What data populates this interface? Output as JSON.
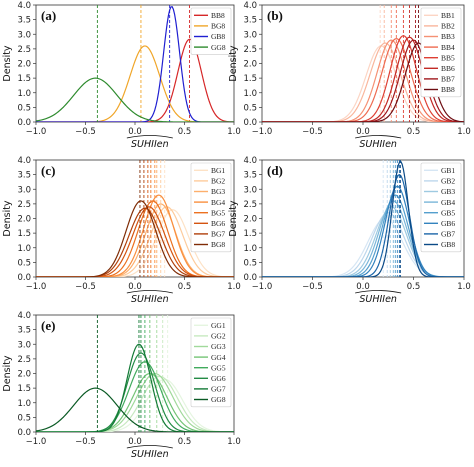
{
  "figure": {
    "xlabel": "SUHIIen",
    "ylabel": "Density"
  },
  "chart_data": [
    {
      "type": "line",
      "panel_label": "(a)",
      "xlim": [
        -1.0,
        1.0
      ],
      "ylim": [
        0.0,
        4.0
      ],
      "xticks": [
        "−1.0",
        "−0.5",
        "0.0",
        "0.5",
        "1.0"
      ],
      "yticks": [
        "0.0",
        "0.5",
        "1.0",
        "1.5",
        "2.0",
        "2.5",
        "3.0",
        "3.5",
        "4.0"
      ],
      "xlabel": "SUHIIen",
      "ylabel": "Density",
      "legend_position": "top-right",
      "series": [
        {
          "name": "BB8",
          "color": "#d62728",
          "mean": 0.57,
          "sd": 0.12,
          "amp": 2.8,
          "skew": -0.25,
          "vline": 0.55
        },
        {
          "name": "BG8",
          "color": "#f0a62a",
          "mean": 0.1,
          "sd": 0.15,
          "amp": 2.6,
          "skew": 0.0,
          "vline": 0.06
        },
        {
          "name": "GB8",
          "color": "#1f1fd1",
          "mean": 0.37,
          "sd": 0.08,
          "amp": 3.95,
          "skew": 0.0,
          "vline": 0.35
        },
        {
          "name": "GG8",
          "color": "#2e8b2e",
          "mean": -0.4,
          "sd": 0.22,
          "amp": 1.5,
          "skew": 0.0,
          "vline": -0.38
        }
      ]
    },
    {
      "type": "line",
      "panel_label": "(b)",
      "xlim": [
        -1.0,
        1.0
      ],
      "ylim": [
        0.0,
        4.0
      ],
      "xticks": [
        "−1.0",
        "−0.5",
        "0.0",
        "0.5",
        "1.0"
      ],
      "yticks": [
        "0.0",
        "0.5",
        "1.0",
        "1.5",
        "2.0",
        "2.5",
        "3.0",
        "3.5",
        "4.0"
      ],
      "xlabel": "SUHIIen",
      "ylabel": "Density",
      "legend_position": "top-right",
      "series": [
        {
          "name": "BB1",
          "color": "#fcd5c4",
          "mean": 0.18,
          "sd": 0.15,
          "amp": 2.6,
          "skew": 0.0,
          "vline": 0.17
        },
        {
          "name": "BB2",
          "color": "#f9b69c",
          "mean": 0.22,
          "sd": 0.15,
          "amp": 2.7,
          "skew": 0.0,
          "vline": 0.21
        },
        {
          "name": "BB3",
          "color": "#f59174",
          "mean": 0.28,
          "sd": 0.14,
          "amp": 2.8,
          "skew": 0.0,
          "vline": 0.28
        },
        {
          "name": "BB4",
          "color": "#ee6a50",
          "mean": 0.33,
          "sd": 0.14,
          "amp": 2.85,
          "skew": 0.0,
          "vline": 0.33
        },
        {
          "name": "BB5",
          "color": "#de3f33",
          "mean": 0.4,
          "sd": 0.13,
          "amp": 2.95,
          "skew": 0.0,
          "vline": 0.4
        },
        {
          "name": "BB6",
          "color": "#c22a26",
          "mean": 0.46,
          "sd": 0.13,
          "amp": 2.9,
          "skew": 0.0,
          "vline": 0.46
        },
        {
          "name": "BB7",
          "color": "#a0171c",
          "mean": 0.5,
          "sd": 0.13,
          "amp": 2.8,
          "skew": 0.0,
          "vline": 0.52
        },
        {
          "name": "BB8",
          "color": "#6e0d12",
          "mean": 0.55,
          "sd": 0.13,
          "amp": 2.7,
          "skew": 0.0,
          "vline": 0.55
        }
      ]
    },
    {
      "type": "line",
      "panel_label": "(c)",
      "xlim": [
        -1.0,
        1.0
      ],
      "ylim": [
        0.0,
        4.0
      ],
      "xticks": [
        "−1.0",
        "−0.5",
        "0.0",
        "0.5",
        "1.0"
      ],
      "yticks": [
        "0.0",
        "0.5",
        "1.0",
        "1.5",
        "2.0",
        "2.5",
        "3.0",
        "3.5",
        "4.0"
      ],
      "xlabel": "SUHIIen",
      "ylabel": "Density",
      "legend_position": "top-right",
      "series": [
        {
          "name": "BG1",
          "color": "#fde2c6",
          "mean": 0.38,
          "sd": 0.16,
          "amp": 2.3,
          "skew": 0.0,
          "vline": 0.3
        },
        {
          "name": "BG2",
          "color": "#fdcb9c",
          "mean": 0.32,
          "sd": 0.16,
          "amp": 2.4,
          "skew": 0.0,
          "vline": 0.26
        },
        {
          "name": "BG3",
          "color": "#fdaf6c",
          "mean": 0.26,
          "sd": 0.15,
          "amp": 2.5,
          "skew": 0.0,
          "vline": 0.22
        },
        {
          "name": "BG4",
          "color": "#f98f3f",
          "mean": 0.24,
          "sd": 0.15,
          "amp": 2.8,
          "skew": 0.0,
          "vline": 0.2
        },
        {
          "name": "BG5",
          "color": "#ec7120",
          "mean": 0.18,
          "sd": 0.15,
          "amp": 2.6,
          "skew": 0.0,
          "vline": 0.16
        },
        {
          "name": "BG6",
          "color": "#d45410",
          "mean": 0.14,
          "sd": 0.16,
          "amp": 2.4,
          "skew": 0.0,
          "vline": 0.13
        },
        {
          "name": "BG7",
          "color": "#b0400b",
          "mean": 0.1,
          "sd": 0.16,
          "amp": 2.35,
          "skew": 0.0,
          "vline": 0.09
        },
        {
          "name": "BG8",
          "color": "#7f2c06",
          "mean": 0.06,
          "sd": 0.15,
          "amp": 2.6,
          "skew": 0.0,
          "vline": 0.05
        }
      ]
    },
    {
      "type": "line",
      "panel_label": "(d)",
      "xlim": [
        -1.0,
        1.0
      ],
      "ylim": [
        0.0,
        4.0
      ],
      "xticks": [
        "−1.0",
        "−0.5",
        "0.0",
        "0.5",
        "1.0"
      ],
      "yticks": [
        "0.0",
        "0.5",
        "1.0",
        "1.5",
        "2.0",
        "2.5",
        "3.0",
        "3.5",
        "4.0"
      ],
      "xlabel": "SUHIIen",
      "ylabel": "Density",
      "legend_position": "top-right",
      "series": [
        {
          "name": "GB1",
          "color": "#d6e6f4",
          "mean": 0.22,
          "sd": 0.17,
          "amp": 2.0,
          "skew": 0.0,
          "vline": 0.2
        },
        {
          "name": "GB2",
          "color": "#bdd7ec",
          "mean": 0.25,
          "sd": 0.16,
          "amp": 2.2,
          "skew": 0.0,
          "vline": 0.24
        },
        {
          "name": "GB3",
          "color": "#9ecae1",
          "mean": 0.28,
          "sd": 0.15,
          "amp": 2.4,
          "skew": 0.0,
          "vline": 0.27
        },
        {
          "name": "GB4",
          "color": "#7ab6d9",
          "mean": 0.3,
          "sd": 0.14,
          "amp": 2.6,
          "skew": 0.0,
          "vline": 0.3
        },
        {
          "name": "GB5",
          "color": "#549fcd",
          "mean": 0.32,
          "sd": 0.13,
          "amp": 2.8,
          "skew": 0.0,
          "vline": 0.32
        },
        {
          "name": "GB6",
          "color": "#3383be",
          "mean": 0.34,
          "sd": 0.12,
          "amp": 3.1,
          "skew": 0.0,
          "vline": 0.34
        },
        {
          "name": "GB7",
          "color": "#1c66a8",
          "mean": 0.36,
          "sd": 0.1,
          "amp": 3.5,
          "skew": 0.0,
          "vline": 0.36
        },
        {
          "name": "GB8",
          "color": "#0b4a86",
          "mean": 0.37,
          "sd": 0.08,
          "amp": 3.95,
          "skew": 0.0,
          "vline": 0.37
        }
      ]
    },
    {
      "type": "line",
      "panel_label": "(e)",
      "xlim": [
        -1.0,
        1.0
      ],
      "ylim": [
        0.0,
        4.0
      ],
      "xticks": [
        "−1.0",
        "−0.5",
        "0.0",
        "0.5",
        "1.0"
      ],
      "yticks": [
        "0.0",
        "0.5",
        "1.0",
        "1.5",
        "2.0",
        "2.5",
        "3.0",
        "3.5",
        "4.0"
      ],
      "xlabel": "SUHIIen",
      "ylabel": "Density",
      "legend_position": "top-right",
      "series": [
        {
          "name": "GG1",
          "color": "#e5f5e0",
          "mean": 0.3,
          "sd": 0.18,
          "amp": 1.8,
          "skew": 0.0,
          "vline": 0.33
        },
        {
          "name": "GG2",
          "color": "#c7e9c0",
          "mean": 0.25,
          "sd": 0.18,
          "amp": 1.9,
          "skew": 0.0,
          "vline": 0.28
        },
        {
          "name": "GG3",
          "color": "#a1d99b",
          "mean": 0.2,
          "sd": 0.18,
          "amp": 2.0,
          "skew": 0.0,
          "vline": 0.22
        },
        {
          "name": "GG4",
          "color": "#74c476",
          "mean": 0.15,
          "sd": 0.17,
          "amp": 2.0,
          "skew": 0.0,
          "vline": 0.15
        },
        {
          "name": "GG5",
          "color": "#41ab5d",
          "mean": 0.1,
          "sd": 0.16,
          "amp": 2.4,
          "skew": 0.0,
          "vline": 0.1
        },
        {
          "name": "GG6",
          "color": "#238b45",
          "mean": 0.06,
          "sd": 0.14,
          "amp": 2.7,
          "skew": 0.0,
          "vline": 0.06
        },
        {
          "name": "GG7",
          "color": "#137a36",
          "mean": 0.04,
          "sd": 0.12,
          "amp": 3.0,
          "skew": 0.0,
          "vline": 0.04
        },
        {
          "name": "GG8",
          "color": "#0a5a24",
          "mean": -0.4,
          "sd": 0.22,
          "amp": 1.5,
          "skew": 0.0,
          "vline": -0.38
        }
      ]
    }
  ]
}
